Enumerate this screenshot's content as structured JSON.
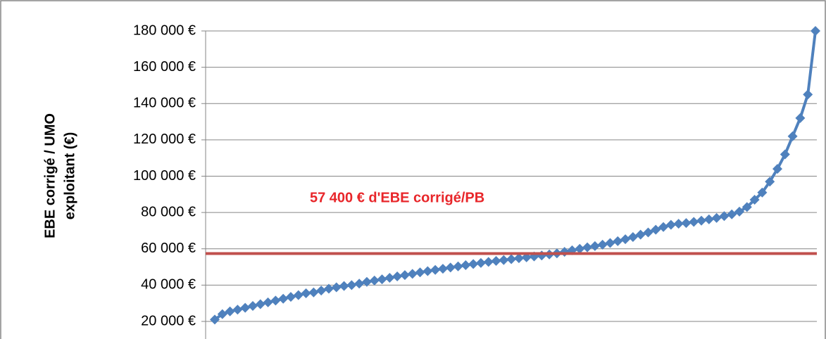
{
  "chart_data": {
    "type": "line",
    "y_label": [
      "EBE corrigé / UMO",
      "exploitant (€)"
    ],
    "ylim": [
      20000,
      180000
    ],
    "yticks": [
      {
        "value": 20000,
        "label": "20 000 €"
      },
      {
        "value": 40000,
        "label": "40 000 €"
      },
      {
        "value": 60000,
        "label": "60 000 €"
      },
      {
        "value": 80000,
        "label": "80 000 €"
      },
      {
        "value": 100000,
        "label": "100 000 €"
      },
      {
        "value": 120000,
        "label": "120 000 €"
      },
      {
        "value": 140000,
        "label": "140 000 €"
      },
      {
        "value": 160000,
        "label": "160 000 €"
      },
      {
        "value": 180000,
        "label": "180 000 €"
      }
    ],
    "grid": true,
    "color": "#4f81bd",
    "values": [
      21000,
      24000,
      25500,
      26500,
      27500,
      28500,
      29500,
      30500,
      31500,
      32500,
      33500,
      34500,
      35500,
      36000,
      37000,
      38000,
      38800,
      39500,
      40000,
      40800,
      41800,
      42500,
      43200,
      44000,
      44800,
      45500,
      46200,
      47000,
      47700,
      48400,
      49000,
      49700,
      50300,
      51000,
      51600,
      52200,
      52800,
      53300,
      53800,
      54300,
      54800,
      55300,
      55800,
      56300,
      56900,
      57500,
      58300,
      59200,
      60000,
      60800,
      61500,
      62300,
      63200,
      64200,
      65300,
      66500,
      67800,
      69000,
      70500,
      72000,
      73200,
      73800,
      74200,
      74800,
      75500,
      76200,
      77000,
      78000,
      79000,
      80500,
      83000,
      87000,
      91000,
      97000,
      104000,
      112000,
      122000,
      132000,
      145000,
      180000
    ],
    "reference_line": {
      "value": 57400,
      "label": "57 400 € d'EBE corrigé/PB",
      "color": "#c0504d",
      "label_color": "#e8262a"
    }
  }
}
